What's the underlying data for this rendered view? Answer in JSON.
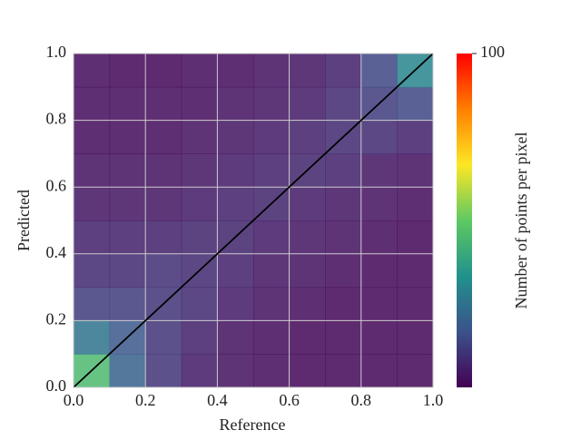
{
  "chart_data": {
    "type": "heatmap",
    "xlabel": "Reference",
    "ylabel": "Predicted",
    "xbins": [
      0,
      0.1,
      0.2,
      0.3,
      0.4,
      0.5,
      0.6,
      0.7,
      0.8,
      0.9,
      1
    ],
    "ybins": [
      0,
      0.1,
      0.2,
      0.3,
      0.4,
      0.5,
      0.6,
      0.7,
      0.8,
      0.9,
      1
    ],
    "values": [
      [
        45,
        20,
        10,
        5,
        3,
        2,
        1,
        1,
        1,
        1
      ],
      [
        25,
        18,
        10,
        6,
        3,
        2,
        1,
        1,
        1,
        1
      ],
      [
        12,
        12,
        10,
        8,
        5,
        3,
        2,
        1,
        1,
        1
      ],
      [
        8,
        8,
        9,
        8,
        6,
        4,
        3,
        2,
        1,
        1
      ],
      [
        6,
        6,
        6,
        7,
        7,
        5,
        4,
        3,
        2,
        1
      ],
      [
        4,
        4,
        4,
        5,
        6,
        7,
        5,
        4,
        3,
        2
      ],
      [
        3,
        3,
        3,
        4,
        5,
        6,
        7,
        6,
        4,
        3
      ],
      [
        2,
        2,
        2,
        3,
        4,
        5,
        6,
        8,
        8,
        6
      ],
      [
        2,
        2,
        2,
        2,
        3,
        4,
        5,
        8,
        12,
        14
      ],
      [
        2,
        1,
        1,
        2,
        2,
        3,
        4,
        6,
        14,
        30
      ]
    ],
    "xlim": [
      0,
      1
    ],
    "ylim": [
      0,
      1
    ],
    "xticks": [
      {
        "value": 0,
        "label": "0.0"
      },
      {
        "value": 0.2,
        "label": "0.2"
      },
      {
        "value": 0.4,
        "label": "0.4"
      },
      {
        "value": 0.6,
        "label": "0.6"
      },
      {
        "value": 0.8,
        "label": "0.8"
      },
      {
        "value": 1,
        "label": "1.0"
      }
    ],
    "yticks": [
      {
        "value": 0,
        "label": "0.0"
      },
      {
        "value": 0.2,
        "label": "0.2"
      },
      {
        "value": 0.4,
        "label": "0.4"
      },
      {
        "value": 0.6,
        "label": "0.6"
      },
      {
        "value": 0.8,
        "label": "0.8"
      },
      {
        "value": 1,
        "label": "1.0"
      }
    ],
    "grid": true,
    "diagonal_color": "#000000",
    "colorbar": {
      "label": "Number of points per pixel",
      "lim": [
        0,
        100
      ],
      "ticks": [
        100
      ],
      "colors": [
        "#440154",
        "#3b528b",
        "#21918c",
        "#5ec962",
        "#fde725",
        "#ff7f00",
        "#ff0000"
      ]
    }
  }
}
